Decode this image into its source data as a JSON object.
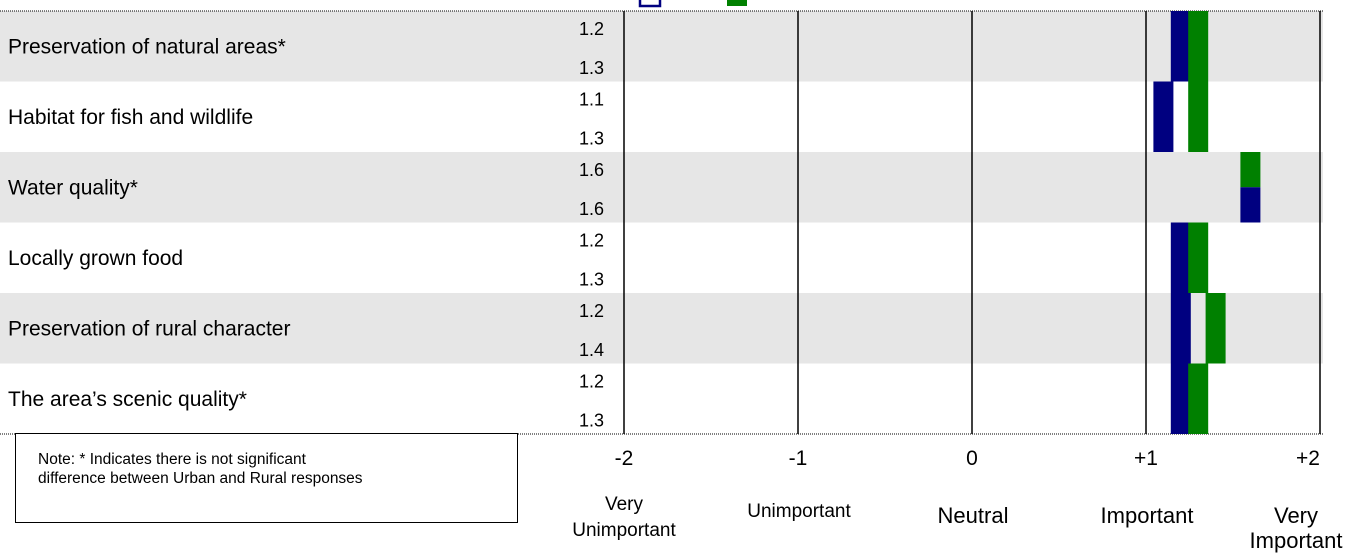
{
  "chart_data": {
    "type": "bar",
    "orientation": "horizontal",
    "categories": [
      "Preservation of natural areas*",
      "Habitat for fish and wildlife",
      "Water quality*",
      "Locally grown food",
      "Preservation of rural character",
      "The area’s scenic quality*"
    ],
    "series": [
      {
        "color": "#000080",
        "values": [
          1.2,
          1.1,
          1.6,
          1.2,
          1.2,
          1.2
        ]
      },
      {
        "color": "#008000",
        "values": [
          1.3,
          1.3,
          1.6,
          1.3,
          1.4,
          1.3
        ]
      }
    ],
    "value_labels": [
      [
        "1.2",
        "1.3"
      ],
      [
        "1.1",
        "1.3"
      ],
      [
        "1.6",
        "1.6"
      ],
      [
        "1.2",
        "1.3"
      ],
      [
        "1.2",
        "1.4"
      ],
      [
        "1.2",
        "1.3"
      ]
    ],
    "xlim": [
      -2,
      2
    ],
    "x_ticks": [
      "-2",
      "-1",
      "0",
      "+1",
      "+2"
    ],
    "x_tick_values": [
      -2,
      -1,
      0,
      1,
      2
    ],
    "scale_labels": [
      [
        "Very",
        "Unimportant"
      ],
      [
        "Unimportant"
      ],
      [
        "Neutral"
      ],
      [
        "Important"
      ],
      [
        "Very",
        "Important"
      ]
    ],
    "row_band_colors": [
      "#e6e6e6",
      "#ffffff"
    ]
  },
  "note": {
    "line1": "Note: * Indicates there is not significant",
    "line2": "difference between Urban and Rural responses"
  }
}
